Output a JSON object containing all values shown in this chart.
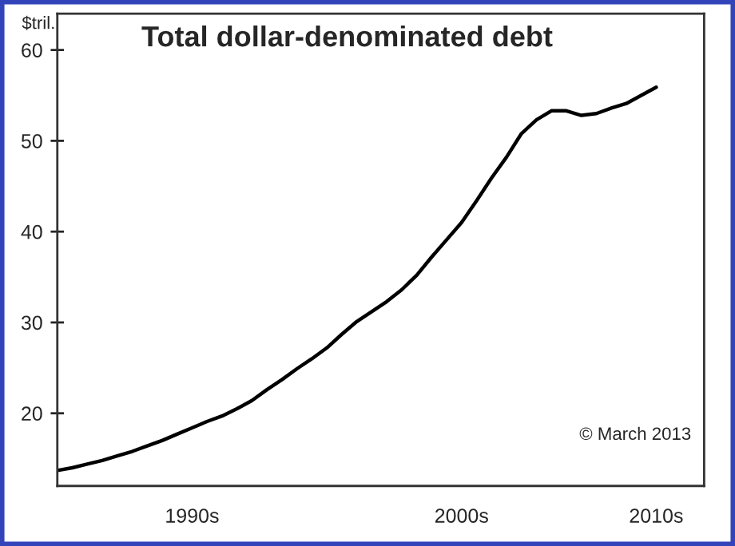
{
  "chart_data": {
    "type": "line",
    "title": "Total dollar-denominated debt",
    "ylabel": "$tril.",
    "categories": [
      null,
      null,
      null,
      null,
      null,
      null,
      null,
      null,
      null,
      "1990s",
      null,
      null,
      null,
      null,
      null,
      null,
      null,
      null,
      null,
      null,
      null,
      null,
      null,
      null,
      null,
      null,
      null,
      "2000s",
      null,
      null,
      null,
      null,
      null,
      null,
      null,
      null,
      null,
      null,
      null,
      null,
      "2010s"
    ],
    "series": [
      {
        "color": "#000000",
        "values": [
          13.7,
          14.0,
          14.4,
          14.8,
          15.3,
          15.8,
          16.4,
          17.0,
          17.7,
          18.4,
          19.1,
          19.7,
          20.5,
          21.4,
          22.6,
          23.7,
          24.9,
          26.0,
          27.2,
          28.7,
          30.1,
          31.2,
          32.3,
          33.6,
          35.2,
          37.2,
          39.1,
          41.0,
          43.4,
          45.9,
          48.2,
          50.8,
          52.3,
          53.3,
          53.3,
          52.8,
          53.0,
          53.6,
          54.1,
          55.0,
          55.9
        ]
      }
    ],
    "ylim": [
      12,
      64
    ],
    "yticks": [
      20,
      30,
      40,
      50,
      60
    ],
    "annotations": [
      "© March 2013"
    ],
    "grid": false,
    "legend": false,
    "marker": "none",
    "line_style": "solid"
  }
}
